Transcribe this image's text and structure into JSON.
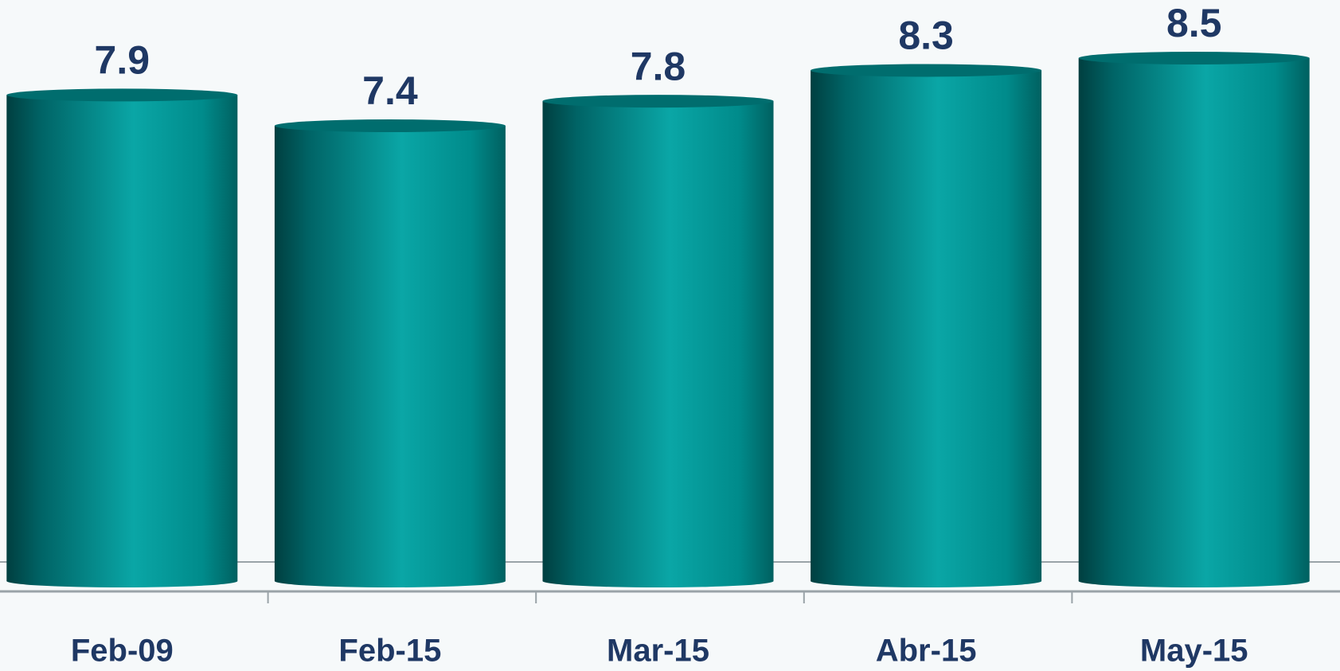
{
  "chart_data": {
    "type": "bar",
    "categories": [
      "Feb-09",
      "Feb-15",
      "Mar-15",
      "Abr-15",
      "May-15"
    ],
    "values": [
      7.9,
      7.4,
      7.8,
      8.3,
      8.5
    ],
    "color": "#0aa6a6"
  }
}
